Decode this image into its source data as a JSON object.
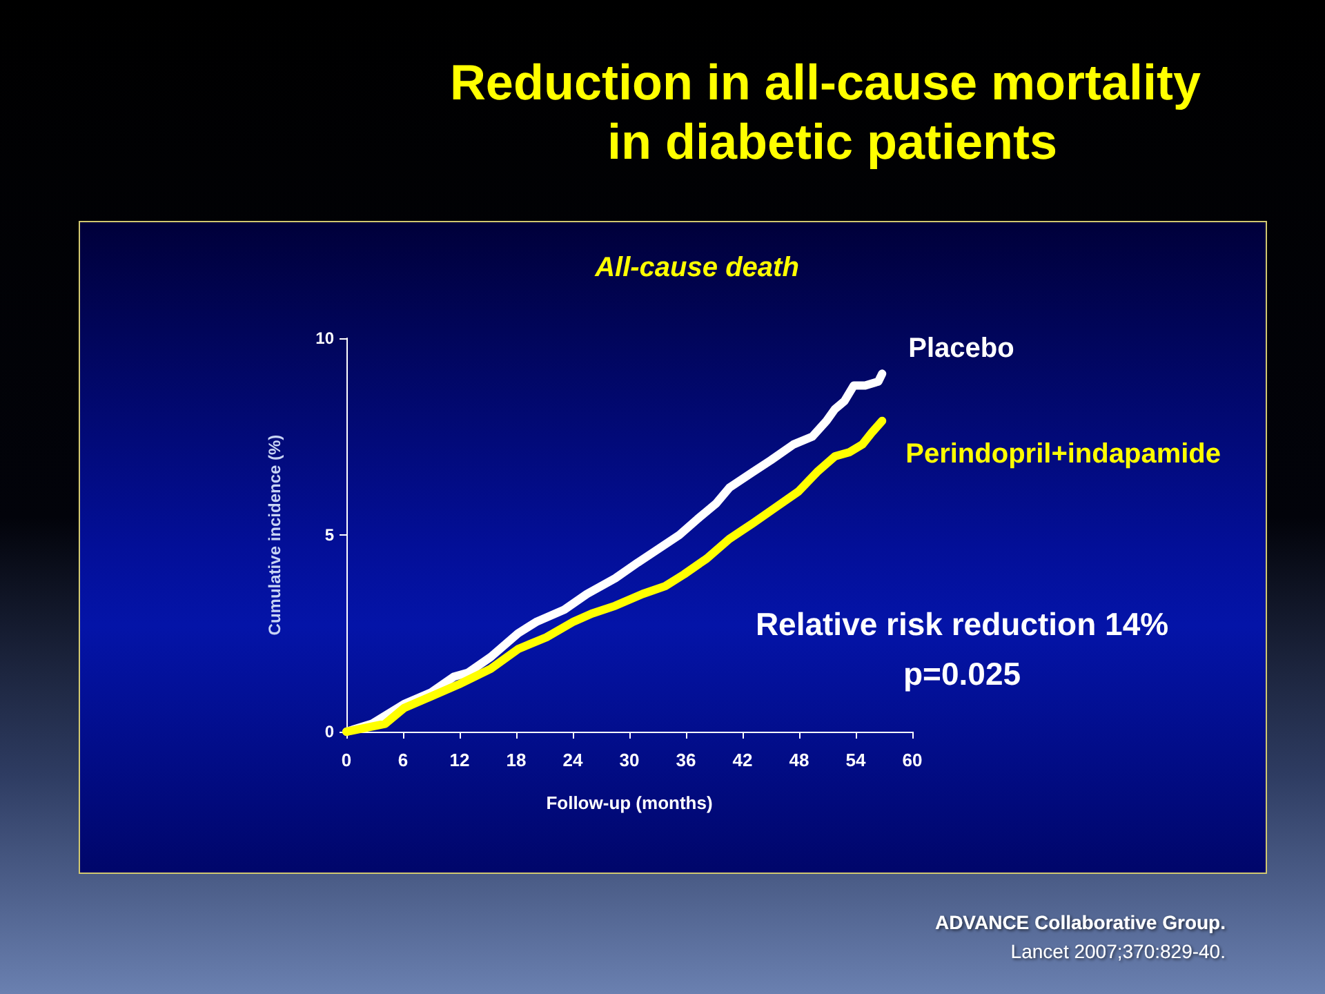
{
  "chart_data": {
    "type": "line",
    "title": "Reduction in all-cause mortality in diabetic patients",
    "subtitle": "All-cause death",
    "xlabel": "Follow-up (months)",
    "ylabel": "Cumulative incidence (%)",
    "xlim": [
      0,
      60
    ],
    "xticks": [
      0,
      6,
      12,
      18,
      24,
      30,
      36,
      42,
      48,
      54,
      60
    ],
    "ylim": [
      0,
      10
    ],
    "yticks": [
      0,
      5,
      10
    ],
    "marker": "none",
    "line_style": "solid",
    "series": [
      {
        "name": "Placebo",
        "color": "#ffffff",
        "x": [
          0,
          2.7,
          6.1,
          9,
          11.4,
          12.9,
          15.3,
          18.2,
          20.2,
          23.1,
          25.5,
          28.5,
          30.9,
          32.8,
          35.3,
          37.2,
          39.2,
          40.6,
          43.1,
          45,
          47.4,
          49.4,
          50.9,
          51.8,
          52.8,
          53.8,
          55,
          56.4,
          56.8
        ],
        "values": [
          0,
          0.2,
          0.7,
          1.0,
          1.4,
          1.5,
          1.9,
          2.5,
          2.8,
          3.1,
          3.5,
          3.9,
          4.3,
          4.6,
          5.0,
          5.4,
          5.8,
          6.2,
          6.6,
          6.9,
          7.3,
          7.5,
          7.9,
          8.2,
          8.4,
          8.8,
          8.8,
          8.9,
          9.1
        ]
      },
      {
        "name": "Perindopril+indapamide",
        "color": "#ffff00",
        "x": [
          0,
          4.1,
          6.1,
          9,
          11.9,
          15.3,
          18.2,
          21.2,
          24.1,
          26,
          28.5,
          31.4,
          33.8,
          35.8,
          38.2,
          40.6,
          43.1,
          45.5,
          47.9,
          49.9,
          51.8,
          53.3,
          54.7,
          55.7,
          56.8
        ],
        "values": [
          0,
          0.2,
          0.6,
          0.9,
          1.2,
          1.6,
          2.1,
          2.4,
          2.8,
          3.0,
          3.2,
          3.5,
          3.7,
          4.0,
          4.4,
          4.9,
          5.3,
          5.7,
          6.1,
          6.6,
          7.0,
          7.1,
          7.3,
          7.6,
          7.9
        ]
      }
    ],
    "annotations": [
      "Relative risk reduction 14%",
      "p=0.025",
      "ADVANCE Collaborative Group.",
      "Lancet 2007;370:829-40."
    ]
  }
}
